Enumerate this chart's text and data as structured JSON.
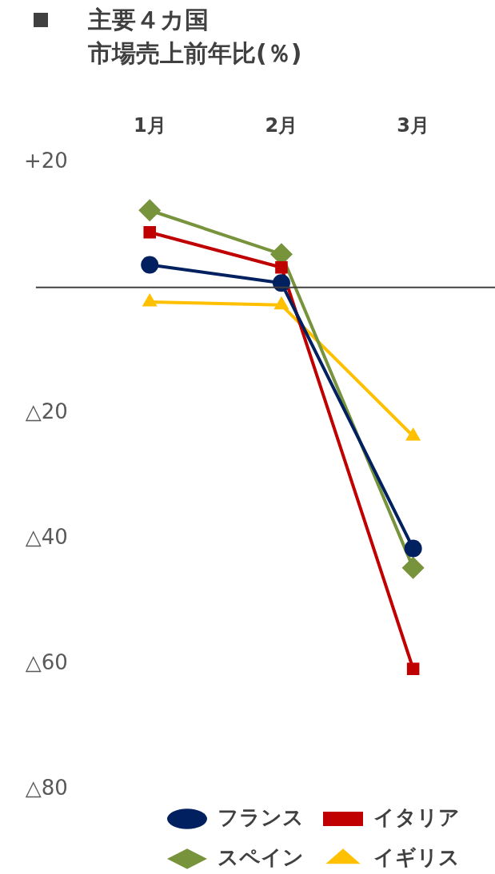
{
  "chart_data": {
    "type": "line",
    "title": "主要４カ国",
    "subtitle": "市場売上前年比(％)",
    "categories": [
      "1月",
      "2月",
      "3月"
    ],
    "series": [
      {
        "name": "フランス",
        "color": "#002060",
        "marker": "circle",
        "values": [
          3.6,
          0.7,
          -41.6
        ]
      },
      {
        "name": "イタリア",
        "color": "#c00000",
        "marker": "square",
        "values": [
          8.8,
          3.2,
          -60.8
        ]
      },
      {
        "name": "スペイン",
        "color": "#77933c",
        "marker": "diamond",
        "values": [
          12.3,
          5.3,
          -44.7
        ]
      },
      {
        "name": "イギリス",
        "color": "#ffc000",
        "marker": "triangle",
        "values": [
          -2.3,
          -2.8,
          -23.7
        ]
      }
    ],
    "ylim": [
      -80,
      20
    ],
    "yticks": [
      {
        "value": 20,
        "label": "+20"
      },
      {
        "value": 0,
        "label": null
      },
      {
        "value": -20,
        "label": "△20"
      },
      {
        "value": -40,
        "label": "△40"
      },
      {
        "value": -60,
        "label": "△60"
      },
      {
        "value": -80,
        "label": "△80"
      }
    ],
    "ref_lines": [
      {
        "axis": "y",
        "value": 0,
        "label": null,
        "color": "#404040"
      }
    ],
    "grid": false,
    "legend": "bottom",
    "line_style": "solid"
  }
}
